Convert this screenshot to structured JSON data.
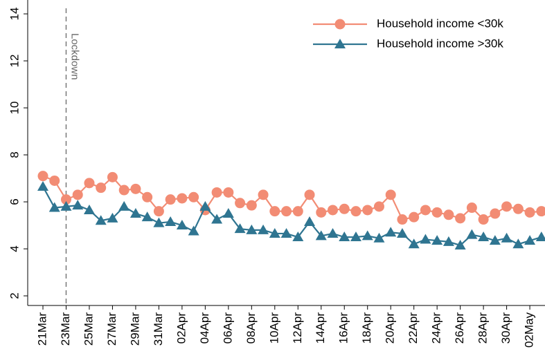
{
  "chart_data": {
    "type": "line",
    "categories": [
      "21Mar",
      null,
      "23Mar",
      null,
      "25Mar",
      null,
      "27Mar",
      null,
      "29Mar",
      null,
      "31Mar",
      null,
      "02Apr",
      null,
      "04Apr",
      null,
      "06Apr",
      null,
      "08Apr",
      null,
      "10Apr",
      null,
      "12Apr",
      null,
      "14Apr",
      null,
      "16Apr",
      null,
      "18Apr",
      null,
      "20Apr",
      null,
      "22Apr",
      null,
      "24Apr",
      null,
      "26Apr",
      null,
      "28Apr",
      null,
      "30Apr",
      null,
      "02May",
      null
    ],
    "series": [
      {
        "name": "Household income <30k",
        "color": "#f28c74",
        "marker": "circle",
        "values": [
          7.1,
          6.9,
          6.1,
          6.3,
          6.8,
          6.6,
          7.05,
          6.5,
          6.55,
          6.2,
          5.6,
          6.1,
          6.15,
          6.2,
          5.65,
          6.4,
          6.4,
          5.95,
          5.85,
          6.3,
          5.6,
          5.6,
          5.6,
          6.3,
          5.55,
          5.65,
          5.7,
          5.6,
          5.65,
          5.8,
          6.3,
          5.25,
          5.35,
          5.65,
          5.55,
          5.45,
          5.3,
          5.75,
          5.25,
          5.5,
          5.8,
          5.7,
          5.55,
          5.6
        ]
      },
      {
        "name": "Household income >30k",
        "color": "#2f7591",
        "marker": "triangle",
        "values": [
          6.65,
          5.75,
          5.8,
          5.85,
          5.65,
          5.2,
          5.3,
          5.8,
          5.5,
          5.35,
          5.1,
          5.15,
          5.0,
          4.75,
          5.8,
          5.25,
          5.5,
          4.85,
          4.8,
          4.8,
          4.65,
          4.65,
          4.5,
          5.15,
          4.55,
          4.65,
          4.5,
          4.5,
          4.55,
          4.45,
          4.7,
          4.65,
          4.2,
          4.4,
          4.35,
          4.3,
          4.15,
          4.6,
          4.5,
          4.35,
          4.45,
          4.2,
          4.35,
          4.5
        ]
      }
    ],
    "ylim": [
      1.59,
      14.59
    ],
    "yticks": [
      2,
      4,
      6,
      8,
      10,
      12,
      14
    ],
    "vline": {
      "label": "Lockdown",
      "at": "23Mar"
    },
    "legend": "top-right",
    "grid": false
  }
}
